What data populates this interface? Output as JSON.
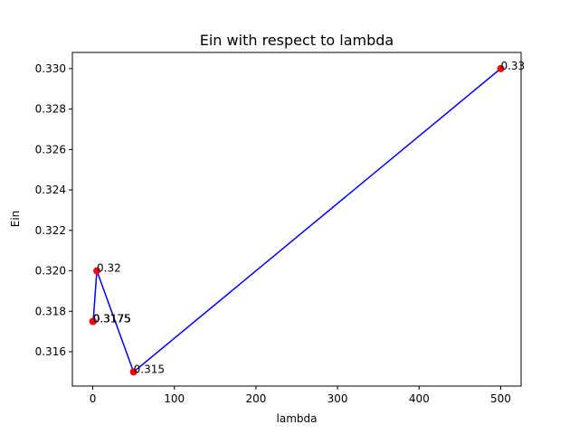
{
  "chart_data": {
    "type": "line",
    "title": "Ein with respect to lambda",
    "xlabel": "lambda",
    "ylabel": "Ein",
    "xlim": [
      -25,
      525
    ],
    "ylim": [
      0.3143,
      0.3308
    ],
    "xticks": [
      0,
      100,
      200,
      300,
      400,
      500
    ],
    "yticks": [
      0.316,
      0.318,
      0.32,
      0.322,
      0.324,
      0.326,
      0.328,
      0.33
    ],
    "ytick_labels": [
      "0.316",
      "0.318",
      "0.320",
      "0.322",
      "0.324",
      "0.326",
      "0.328",
      "0.330"
    ],
    "grid": false,
    "series": [
      {
        "line_color": "#0000ff",
        "marker_color": "#ff0000",
        "points": [
          {
            "x": 0.05,
            "y": 0.3175,
            "label": "0.3175"
          },
          {
            "x": 0.5,
            "y": 0.3175,
            "label": "0.3175"
          },
          {
            "x": 5,
            "y": 0.32,
            "label": "0.32"
          },
          {
            "x": 50,
            "y": 0.315,
            "label": "0.315"
          },
          {
            "x": 500,
            "y": 0.33,
            "label": "0.33"
          }
        ]
      }
    ]
  }
}
